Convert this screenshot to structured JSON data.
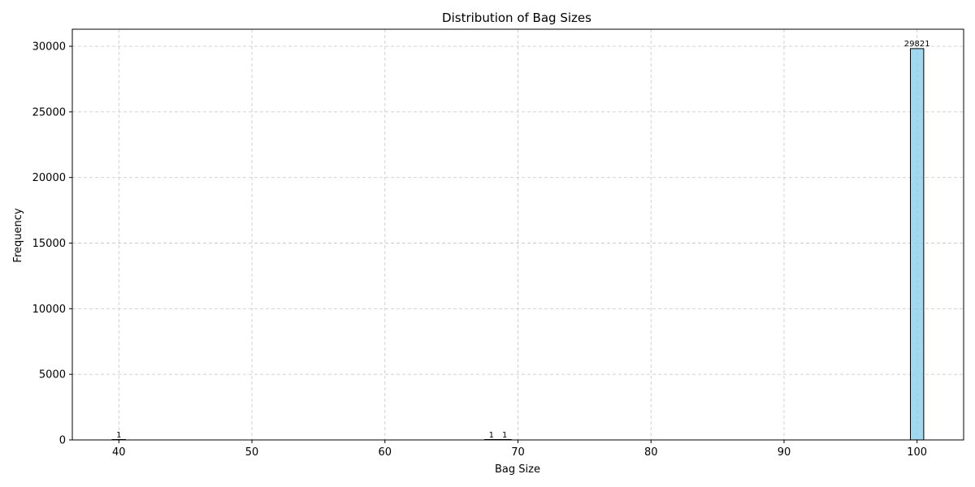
{
  "chart_data": {
    "type": "bar",
    "title": "Distribution of Bag Sizes",
    "xlabel": "Bag Size",
    "ylabel": "Frequency",
    "x_ticks": [
      40,
      50,
      60,
      70,
      80,
      90,
      100
    ],
    "y_ticks": [
      0,
      5000,
      10000,
      15000,
      20000,
      25000,
      30000
    ],
    "xlim": [
      36.5,
      103.5
    ],
    "ylim": [
      0,
      31300
    ],
    "bin_width": 1,
    "bins": [
      {
        "x": 40,
        "value": 1,
        "label": "1"
      },
      {
        "x": 68,
        "value": 1,
        "label": "1"
      },
      {
        "x": 69,
        "value": 1,
        "label": "1"
      },
      {
        "x": 100,
        "value": 29821,
        "label": "29821"
      }
    ],
    "grid": true,
    "colors": {
      "bar_fill": "#87ceeb",
      "bar_edge": "#000000",
      "grid": "#cccccc"
    }
  }
}
